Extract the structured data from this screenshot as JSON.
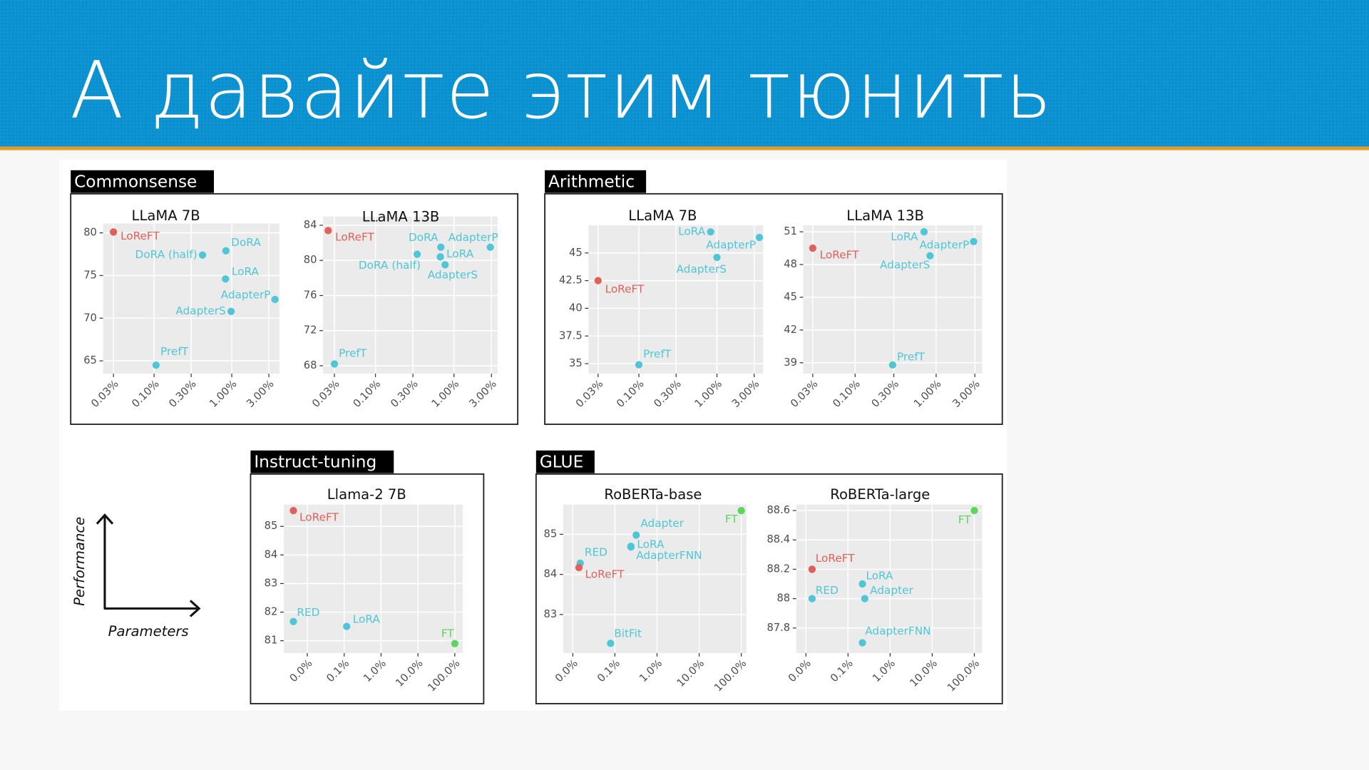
{
  "title": "А давайте этим тюнить",
  "panels": [
    {
      "label": "Commonsense"
    },
    {
      "label": "Arithmetic"
    },
    {
      "label": "Instruct-tuning"
    },
    {
      "label": "GLUE"
    }
  ],
  "axes_key": {
    "y_label": "Performance",
    "x_label": "Parameters"
  },
  "chart_data": [
    {
      "type": "scatter",
      "title": "LLaMA 7B",
      "x_scale": "log",
      "grid": true,
      "xlim": [
        0.022,
        4.1
      ],
      "ylim": [
        63.5,
        81.1
      ],
      "xticks": [
        {
          "value": 0.03,
          "label": "0.03%"
        },
        {
          "value": 0.1,
          "label": "0.10%"
        },
        {
          "value": 0.3,
          "label": "0.30%"
        },
        {
          "value": 1,
          "label": "1.00%"
        },
        {
          "value": 3,
          "label": "3.00%"
        }
      ],
      "yticks": [
        80,
        75,
        70,
        65
      ],
      "point_labels": [
        "LoReFT",
        "DoRA",
        "DoRA (half)",
        "LoRA",
        "AdapterP",
        "AdapterS",
        "PrefT"
      ],
      "x": [
        0.03,
        0.84,
        0.42,
        0.83,
        3.6,
        0.98,
        0.106
      ],
      "values": [
        80.1,
        77.9,
        77.4,
        74.6,
        72.2,
        70.8,
        64.5
      ],
      "colors": [
        "#e0605a",
        "#4fc6d6",
        "#4fc6d6",
        "#4fc6d6",
        "#4fc6d6",
        "#4fc6d6",
        "#4fc6d6"
      ]
    },
    {
      "type": "scatter",
      "title": "LLaMA 13B",
      "x_scale": "log",
      "grid": true,
      "xlim": [
        0.0215,
        3.6
      ],
      "ylim": [
        67.1,
        85.0
      ],
      "xticks": [
        {
          "value": 0.03,
          "label": "0.03%"
        },
        {
          "value": 0.1,
          "label": "0.10%"
        },
        {
          "value": 0.3,
          "label": "0.30%"
        },
        {
          "value": 1,
          "label": "1.00%"
        },
        {
          "value": 3,
          "label": "3.00%"
        }
      ],
      "yticks": [
        84,
        80,
        76,
        72,
        68
      ],
      "point_labels": [
        "LoReFT",
        "DoRA",
        "AdapterP",
        "LoRA",
        "DoRA (half)",
        "AdapterS",
        "PrefT"
      ],
      "x": [
        0.025,
        0.68,
        2.9,
        0.67,
        0.34,
        0.77,
        0.03
      ],
      "values": [
        83.4,
        81.5,
        81.5,
        80.4,
        80.7,
        79.5,
        68.2
      ],
      "colors": [
        "#e0605a",
        "#4fc6d6",
        "#4fc6d6",
        "#4fc6d6",
        "#4fc6d6",
        "#4fc6d6",
        "#4fc6d6"
      ]
    },
    {
      "type": "scatter",
      "title": "LLaMA 7B",
      "x_scale": "log",
      "grid": true,
      "xlim": [
        0.0226,
        3.9
      ],
      "ylim": [
        34.1,
        47.5
      ],
      "xticks": [
        {
          "value": 0.03,
          "label": "0.03%"
        },
        {
          "value": 0.1,
          "label": "0.10%"
        },
        {
          "value": 0.3,
          "label": "0.30%"
        },
        {
          "value": 1,
          "label": "1.00%"
        },
        {
          "value": 3,
          "label": "3.00%"
        }
      ],
      "yticks": [
        45,
        42.5,
        40,
        37.5,
        35
      ],
      "point_labels": [
        "LoRA",
        "AdapterP",
        "AdapterS",
        "LoReFT",
        "PrefT"
      ],
      "x": [
        0.83,
        3.5,
        1.0,
        0.03,
        0.1
      ],
      "values": [
        46.9,
        46.4,
        44.6,
        42.5,
        34.9
      ],
      "colors": [
        "#4fc6d6",
        "#4fc6d6",
        "#4fc6d6",
        "#e0605a",
        "#4fc6d6"
      ]
    },
    {
      "type": "scatter",
      "title": "LLaMA 13B",
      "x_scale": "log",
      "grid": true,
      "xlim": [
        0.0229,
        3.7
      ],
      "ylim": [
        38.0,
        51.6
      ],
      "xticks": [
        {
          "value": 0.03,
          "label": "0.03%"
        },
        {
          "value": 0.1,
          "label": "0.10%"
        },
        {
          "value": 0.3,
          "label": "0.30%"
        },
        {
          "value": 1,
          "label": "1.00%"
        },
        {
          "value": 3,
          "label": "3.00%"
        }
      ],
      "yticks": [
        51,
        48,
        45,
        42,
        39
      ],
      "point_labels": [
        "LoReFT",
        "LoRA",
        "AdapterP",
        "AdapterS",
        "PrefT"
      ],
      "x": [
        0.03,
        0.71,
        2.9,
        0.84,
        0.29
      ],
      "values": [
        49.5,
        51,
        50.1,
        48.8,
        38.8
      ],
      "colors": [
        "#e0605a",
        "#4fc6d6",
        "#4fc6d6",
        "#4fc6d6",
        "#4fc6d6"
      ]
    },
    {
      "type": "scatter",
      "title": "Llama-2 7B",
      "x_scale": "log",
      "grid": true,
      "xlim": [
        0.0023,
        164
      ],
      "ylim": [
        80.57,
        85.76
      ],
      "xticks": [
        {
          "value": 0.01,
          "label": "0.0%"
        },
        {
          "value": 0.1,
          "label": "0.1%"
        },
        {
          "value": 1,
          "label": "1.0%"
        },
        {
          "value": 10,
          "label": "10.0%"
        },
        {
          "value": 100,
          "label": "100.0%"
        }
      ],
      "yticks": [
        85,
        84,
        83,
        82,
        81
      ],
      "point_labels": [
        "LoReFT",
        "RED",
        "LoRA",
        "FT"
      ],
      "x": [
        0.0042,
        0.0042,
        0.117,
        100
      ],
      "values": [
        85.55,
        81.67,
        81.5,
        80.9
      ],
      "colors": [
        "#e0605a",
        "#4fc6d6",
        "#4fc6d6",
        "#5cd65c"
      ]
    },
    {
      "type": "scatter",
      "title": "RoBERTa-base",
      "x_scale": "log",
      "grid": true,
      "xlim": [
        0.0059,
        133
      ],
      "ylim": [
        82.04,
        85.74
      ],
      "xticks": [
        {
          "value": 0.01,
          "label": "0.0%"
        },
        {
          "value": 0.1,
          "label": "0.1%"
        },
        {
          "value": 1,
          "label": "1.0%"
        },
        {
          "value": 10,
          "label": "10.0%"
        },
        {
          "value": 100,
          "label": "100.0%"
        }
      ],
      "yticks": [
        85,
        84,
        83
      ],
      "point_labels": [
        "FT",
        "Adapter",
        "LoRA",
        "AdapterFNN",
        "RED",
        "LoReFT",
        "BitFit"
      ],
      "x": [
        100,
        0.32,
        0.24,
        0.24,
        0.015,
        0.014,
        0.079
      ],
      "values": [
        85.59,
        84.98,
        84.7,
        84.68,
        84.28,
        84.17,
        82.28
      ],
      "colors": [
        "#5cd65c",
        "#4fc6d6",
        "#4fc6d6",
        "#4fc6d6",
        "#4fc6d6",
        "#e0605a",
        "#4fc6d6"
      ]
    },
    {
      "type": "scatter",
      "title": "RoBERTa-large",
      "x_scale": "log",
      "grid": true,
      "xlim": [
        0.0059,
        154
      ],
      "ylim": [
        87.63,
        88.64
      ],
      "xticks": [
        {
          "value": 0.01,
          "label": "0.0%"
        },
        {
          "value": 0.1,
          "label": "0.1%"
        },
        {
          "value": 1,
          "label": "1.0%"
        },
        {
          "value": 10,
          "label": "10.0%"
        },
        {
          "value": 100,
          "label": "100.0%"
        }
      ],
      "yticks": [
        88.6,
        88.4,
        88.2,
        88,
        87.8
      ],
      "point_labels": [
        "FT",
        "LoReFT",
        "LoRA",
        "RED",
        "Adapter",
        "AdapterFNN"
      ],
      "x": [
        100,
        0.014,
        0.22,
        0.014,
        0.25,
        0.22
      ],
      "values": [
        88.6,
        88.2,
        88.1,
        88.0,
        88.0,
        87.7
      ],
      "colors": [
        "#5cd65c",
        "#e0605a",
        "#4fc6d6",
        "#4fc6d6",
        "#4fc6d6",
        "#4fc6d6"
      ]
    }
  ]
}
